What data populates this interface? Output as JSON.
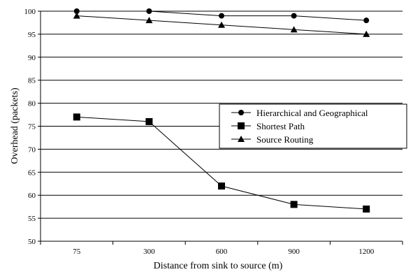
{
  "chart_data": {
    "type": "line",
    "xlabel": "Distance from sink to source (m)",
    "ylabel": "Overhead (packets)",
    "categories": [
      "75",
      "300",
      "600",
      "900",
      "1200"
    ],
    "ylim": [
      50,
      100
    ],
    "yticks": [
      50,
      55,
      60,
      65,
      70,
      75,
      80,
      85,
      90,
      95,
      100
    ],
    "grid": true,
    "legend_position": "right",
    "series": [
      {
        "name": "Hierarchical and Geographical",
        "marker": "circle",
        "values": [
          100,
          100,
          99,
          99,
          98
        ]
      },
      {
        "name": "Shortest Path",
        "marker": "square",
        "values": [
          77,
          76,
          62,
          58,
          57
        ]
      },
      {
        "name": "Source Routing",
        "marker": "triangle",
        "values": [
          99,
          98,
          97,
          96,
          95
        ]
      }
    ]
  }
}
